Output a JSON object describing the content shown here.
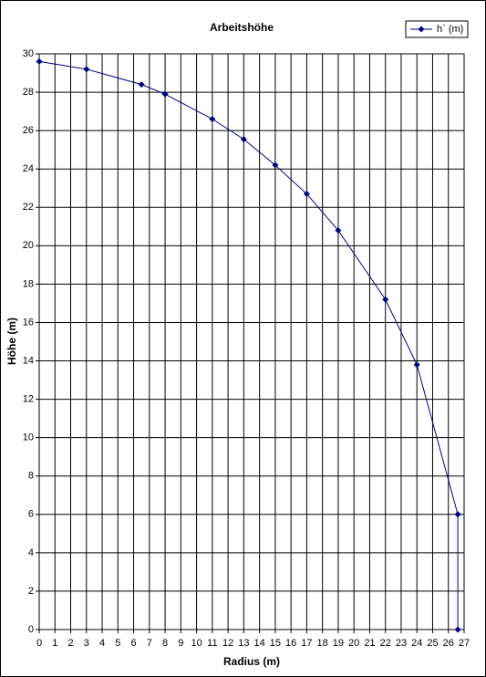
{
  "chart_data": {
    "type": "line",
    "title": "Arbeitshöhe",
    "x_label": "Radius (m)",
    "y_label": "Höhe (m)",
    "x": [
      0,
      3,
      6.5,
      8,
      11,
      13,
      15,
      17,
      19,
      22,
      24,
      26.6,
      26.6
    ],
    "series": [
      {
        "name": "h` (m)",
        "color": "#000080",
        "values": [
          29.6,
          29.2,
          28.4,
          27.9,
          26.6,
          25.55,
          24.2,
          22.7,
          20.8,
          17.2,
          13.8,
          6,
          0
        ]
      }
    ],
    "xlim": [
      0,
      27
    ],
    "xticks": [
      0,
      1,
      2,
      3,
      4,
      5,
      6,
      7,
      8,
      9,
      10,
      11,
      12,
      13,
      14,
      15,
      16,
      17,
      18,
      19,
      20,
      21,
      22,
      23,
      24,
      25,
      26,
      27
    ],
    "ylim": [
      0,
      30
    ],
    "yticks": [
      0,
      2,
      4,
      6,
      8,
      10,
      12,
      14,
      16,
      18,
      20,
      22,
      24,
      26,
      28,
      30
    ],
    "grid": true,
    "legend": "top-right"
  }
}
